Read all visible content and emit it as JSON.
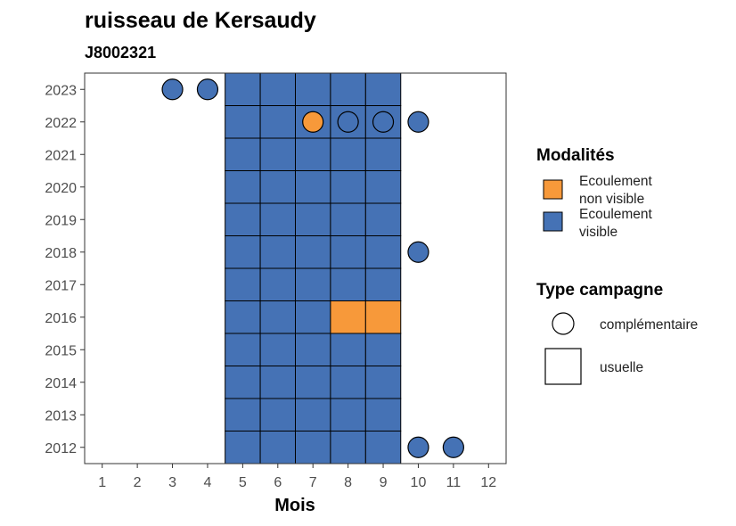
{
  "chart_data": {
    "type": "heatmap",
    "title": "ruisseau de Kersaudy",
    "subtitle": "J8002321",
    "xlabel": "Mois",
    "ylabel": "",
    "x_ticks": [
      1,
      2,
      3,
      4,
      5,
      6,
      7,
      8,
      9,
      10,
      11,
      12
    ],
    "y_ticks": [
      2012,
      2013,
      2014,
      2015,
      2016,
      2017,
      2018,
      2019,
      2020,
      2021,
      2022,
      2023
    ],
    "xlim": [
      0.5,
      12.5
    ],
    "ylim": [
      2011.5,
      2023.5
    ],
    "grid": false,
    "legend_placement": "right",
    "colors": {
      "Ecoulement non visible": "#f7993a",
      "Ecoulement visible": "#4572b5"
    },
    "legend": {
      "fill_title": "Modalités",
      "fill_items": [
        {
          "lines": [
            "Ecoulement",
            "non visible"
          ],
          "key": "Ecoulement non visible"
        },
        {
          "lines": [
            "Ecoulement",
            "visible"
          ],
          "key": "Ecoulement visible"
        }
      ],
      "shape_title": "Type campagne",
      "shape_items": [
        {
          "label": "complémentaire",
          "shape": "circle"
        },
        {
          "label": "usuelle",
          "shape": "square"
        }
      ]
    },
    "observations": [
      {
        "year": 2012,
        "month": 5,
        "type": "usuelle",
        "modalite": "Ecoulement visible"
      },
      {
        "year": 2012,
        "month": 6,
        "type": "usuelle",
        "modalite": "Ecoulement visible"
      },
      {
        "year": 2012,
        "month": 7,
        "type": "usuelle",
        "modalite": "Ecoulement visible"
      },
      {
        "year": 2012,
        "month": 8,
        "type": "usuelle",
        "modalite": "Ecoulement visible"
      },
      {
        "year": 2012,
        "month": 9,
        "type": "usuelle",
        "modalite": "Ecoulement visible"
      },
      {
        "year": 2012,
        "month": 10,
        "type": "complémentaire",
        "modalite": "Ecoulement visible"
      },
      {
        "year": 2012,
        "month": 11,
        "type": "complémentaire",
        "modalite": "Ecoulement visible"
      },
      {
        "year": 2013,
        "month": 5,
        "type": "usuelle",
        "modalite": "Ecoulement visible"
      },
      {
        "year": 2013,
        "month": 6,
        "type": "usuelle",
        "modalite": "Ecoulement visible"
      },
      {
        "year": 2013,
        "month": 7,
        "type": "usuelle",
        "modalite": "Ecoulement visible"
      },
      {
        "year": 2013,
        "month": 8,
        "type": "usuelle",
        "modalite": "Ecoulement visible"
      },
      {
        "year": 2013,
        "month": 9,
        "type": "usuelle",
        "modalite": "Ecoulement visible"
      },
      {
        "year": 2014,
        "month": 5,
        "type": "usuelle",
        "modalite": "Ecoulement visible"
      },
      {
        "year": 2014,
        "month": 6,
        "type": "usuelle",
        "modalite": "Ecoulement visible"
      },
      {
        "year": 2014,
        "month": 7,
        "type": "usuelle",
        "modalite": "Ecoulement visible"
      },
      {
        "year": 2014,
        "month": 8,
        "type": "usuelle",
        "modalite": "Ecoulement visible"
      },
      {
        "year": 2014,
        "month": 9,
        "type": "usuelle",
        "modalite": "Ecoulement visible"
      },
      {
        "year": 2015,
        "month": 5,
        "type": "usuelle",
        "modalite": "Ecoulement visible"
      },
      {
        "year": 2015,
        "month": 6,
        "type": "usuelle",
        "modalite": "Ecoulement visible"
      },
      {
        "year": 2015,
        "month": 7,
        "type": "usuelle",
        "modalite": "Ecoulement visible"
      },
      {
        "year": 2015,
        "month": 8,
        "type": "usuelle",
        "modalite": "Ecoulement visible"
      },
      {
        "year": 2015,
        "month": 9,
        "type": "usuelle",
        "modalite": "Ecoulement visible"
      },
      {
        "year": 2016,
        "month": 5,
        "type": "usuelle",
        "modalite": "Ecoulement visible"
      },
      {
        "year": 2016,
        "month": 6,
        "type": "usuelle",
        "modalite": "Ecoulement visible"
      },
      {
        "year": 2016,
        "month": 7,
        "type": "usuelle",
        "modalite": "Ecoulement visible"
      },
      {
        "year": 2016,
        "month": 8,
        "type": "usuelle",
        "modalite": "Ecoulement non visible"
      },
      {
        "year": 2016,
        "month": 9,
        "type": "usuelle",
        "modalite": "Ecoulement non visible"
      },
      {
        "year": 2017,
        "month": 5,
        "type": "usuelle",
        "modalite": "Ecoulement visible"
      },
      {
        "year": 2017,
        "month": 6,
        "type": "usuelle",
        "modalite": "Ecoulement visible"
      },
      {
        "year": 2017,
        "month": 7,
        "type": "usuelle",
        "modalite": "Ecoulement visible"
      },
      {
        "year": 2017,
        "month": 8,
        "type": "usuelle",
        "modalite": "Ecoulement visible"
      },
      {
        "year": 2017,
        "month": 9,
        "type": "usuelle",
        "modalite": "Ecoulement visible"
      },
      {
        "year": 2018,
        "month": 5,
        "type": "usuelle",
        "modalite": "Ecoulement visible"
      },
      {
        "year": 2018,
        "month": 6,
        "type": "usuelle",
        "modalite": "Ecoulement visible"
      },
      {
        "year": 2018,
        "month": 7,
        "type": "usuelle",
        "modalite": "Ecoulement visible"
      },
      {
        "year": 2018,
        "month": 8,
        "type": "usuelle",
        "modalite": "Ecoulement visible"
      },
      {
        "year": 2018,
        "month": 9,
        "type": "usuelle",
        "modalite": "Ecoulement visible"
      },
      {
        "year": 2018,
        "month": 10,
        "type": "complémentaire",
        "modalite": "Ecoulement visible"
      },
      {
        "year": 2019,
        "month": 5,
        "type": "usuelle",
        "modalite": "Ecoulement visible"
      },
      {
        "year": 2019,
        "month": 6,
        "type": "usuelle",
        "modalite": "Ecoulement visible"
      },
      {
        "year": 2019,
        "month": 7,
        "type": "usuelle",
        "modalite": "Ecoulement visible"
      },
      {
        "year": 2019,
        "month": 8,
        "type": "usuelle",
        "modalite": "Ecoulement visible"
      },
      {
        "year": 2019,
        "month": 9,
        "type": "usuelle",
        "modalite": "Ecoulement visible"
      },
      {
        "year": 2020,
        "month": 5,
        "type": "usuelle",
        "modalite": "Ecoulement visible"
      },
      {
        "year": 2020,
        "month": 6,
        "type": "usuelle",
        "modalite": "Ecoulement visible"
      },
      {
        "year": 2020,
        "month": 7,
        "type": "usuelle",
        "modalite": "Ecoulement visible"
      },
      {
        "year": 2020,
        "month": 8,
        "type": "usuelle",
        "modalite": "Ecoulement visible"
      },
      {
        "year": 2020,
        "month": 9,
        "type": "usuelle",
        "modalite": "Ecoulement visible"
      },
      {
        "year": 2021,
        "month": 5,
        "type": "usuelle",
        "modalite": "Ecoulement visible"
      },
      {
        "year": 2021,
        "month": 6,
        "type": "usuelle",
        "modalite": "Ecoulement visible"
      },
      {
        "year": 2021,
        "month": 7,
        "type": "usuelle",
        "modalite": "Ecoulement visible"
      },
      {
        "year": 2021,
        "month": 8,
        "type": "usuelle",
        "modalite": "Ecoulement visible"
      },
      {
        "year": 2021,
        "month": 9,
        "type": "usuelle",
        "modalite": "Ecoulement visible"
      },
      {
        "year": 2022,
        "month": 5,
        "type": "usuelle",
        "modalite": "Ecoulement visible"
      },
      {
        "year": 2022,
        "month": 6,
        "type": "usuelle",
        "modalite": "Ecoulement visible"
      },
      {
        "year": 2022,
        "month": 7,
        "type": "usuelle",
        "modalite": "Ecoulement visible"
      },
      {
        "year": 2022,
        "month": 8,
        "type": "usuelle",
        "modalite": "Ecoulement visible"
      },
      {
        "year": 2022,
        "month": 9,
        "type": "usuelle",
        "modalite": "Ecoulement visible"
      },
      {
        "year": 2022,
        "month": 7,
        "type": "complémentaire",
        "modalite": "Ecoulement non visible"
      },
      {
        "year": 2022,
        "month": 8,
        "type": "complémentaire",
        "modalite": "Ecoulement visible"
      },
      {
        "year": 2022,
        "month": 9,
        "type": "complémentaire",
        "modalite": "Ecoulement visible"
      },
      {
        "year": 2022,
        "month": 10,
        "type": "complémentaire",
        "modalite": "Ecoulement visible"
      },
      {
        "year": 2023,
        "month": 5,
        "type": "usuelle",
        "modalite": "Ecoulement visible"
      },
      {
        "year": 2023,
        "month": 6,
        "type": "usuelle",
        "modalite": "Ecoulement visible"
      },
      {
        "year": 2023,
        "month": 7,
        "type": "usuelle",
        "modalite": "Ecoulement visible"
      },
      {
        "year": 2023,
        "month": 8,
        "type": "usuelle",
        "modalite": "Ecoulement visible"
      },
      {
        "year": 2023,
        "month": 9,
        "type": "usuelle",
        "modalite": "Ecoulement visible"
      },
      {
        "year": 2023,
        "month": 3,
        "type": "complémentaire",
        "modalite": "Ecoulement visible"
      },
      {
        "year": 2023,
        "month": 4,
        "type": "complémentaire",
        "modalite": "Ecoulement visible"
      }
    ]
  }
}
